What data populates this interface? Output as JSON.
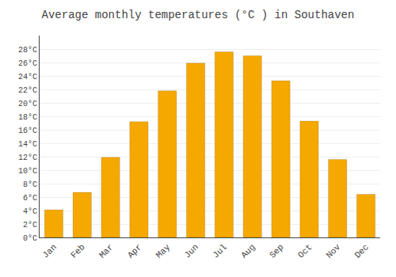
{
  "chart_data": {
    "type": "bar",
    "title": "Average monthly temperatures (°C ) in Southaven",
    "categories": [
      "Jan",
      "Feb",
      "Mar",
      "Apr",
      "May",
      "Jun",
      "Jul",
      "Aug",
      "Sep",
      "Oct",
      "Nov",
      "Dec"
    ],
    "values": [
      4.1,
      6.7,
      11.9,
      17.2,
      21.8,
      25.9,
      27.6,
      27.0,
      23.3,
      17.3,
      11.6,
      6.4
    ],
    "color": "#F5A800",
    "ylim": [
      0,
      30
    ],
    "yticks": [
      {
        "value": 0,
        "label": "0°C"
      },
      {
        "value": 2,
        "label": "2°C"
      },
      {
        "value": 4,
        "label": "4°C"
      },
      {
        "value": 6,
        "label": "6°C"
      },
      {
        "value": 8,
        "label": "8°C"
      },
      {
        "value": 10,
        "label": "10°C"
      },
      {
        "value": 12,
        "label": "12°C"
      },
      {
        "value": 14,
        "label": "14°C"
      },
      {
        "value": 16,
        "label": "16°C"
      },
      {
        "value": 18,
        "label": "18°C"
      },
      {
        "value": 20,
        "label": "20°C"
      },
      {
        "value": 22,
        "label": "22°C"
      },
      {
        "value": 24,
        "label": "24°C"
      },
      {
        "value": 26,
        "label": "26°C"
      },
      {
        "value": 28,
        "label": "28°C"
      }
    ],
    "grid": true
  }
}
